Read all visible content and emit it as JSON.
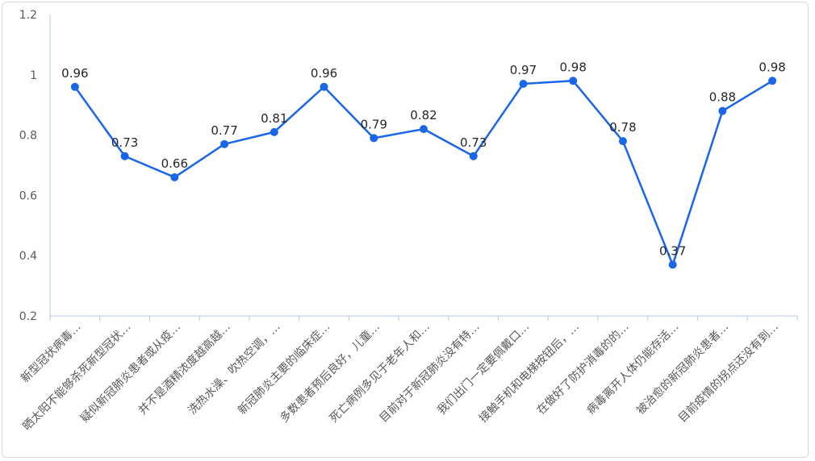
{
  "chart_data": {
    "type": "line",
    "title": "",
    "xlabel": "",
    "ylabel": "",
    "ylim": [
      0.2,
      1.2
    ],
    "yticks": [
      0.2,
      0.4,
      0.6,
      0.8,
      1,
      1.2
    ],
    "ytick_labels": [
      "0.2",
      "0.4",
      "0.6",
      "0.8",
      "1",
      "1.2"
    ],
    "grid": false,
    "line_color": "#1a66e8",
    "categories": [
      "新型冠状病毒…",
      "晒太阳不能够杀死新型冠状…",
      "疑似新冠肺炎患者或从疫…",
      "并不是酒精浓度越高越…",
      "洗热水澡、吹热空调，…",
      "新冠肺炎主要的临床症…",
      "多数患者预后良好，儿童…",
      "死亡病例多见于老年人和…",
      "目前对于新冠肺炎没有特…",
      "我们出门一定要佩戴口…",
      "接触手机和电梯按钮后，…",
      "在做好了防护消毒的的…",
      "病毒离开人体仍能存活…",
      "被治愈的新冠肺炎患者…",
      "目前疫情的拐点还没有到…"
    ],
    "values": [
      0.96,
      0.73,
      0.66,
      0.77,
      0.81,
      0.96,
      0.79,
      0.82,
      0.73,
      0.97,
      0.98,
      0.78,
      0.37,
      0.88,
      0.98
    ],
    "data_labels": [
      "0.96",
      "0.73",
      "0.66",
      "0.77",
      "0.81",
      "0.96",
      "0.79",
      "0.82",
      "0.73",
      "0.97",
      "0.98",
      "0.78",
      "0.37",
      "0.88",
      "0.98"
    ]
  }
}
